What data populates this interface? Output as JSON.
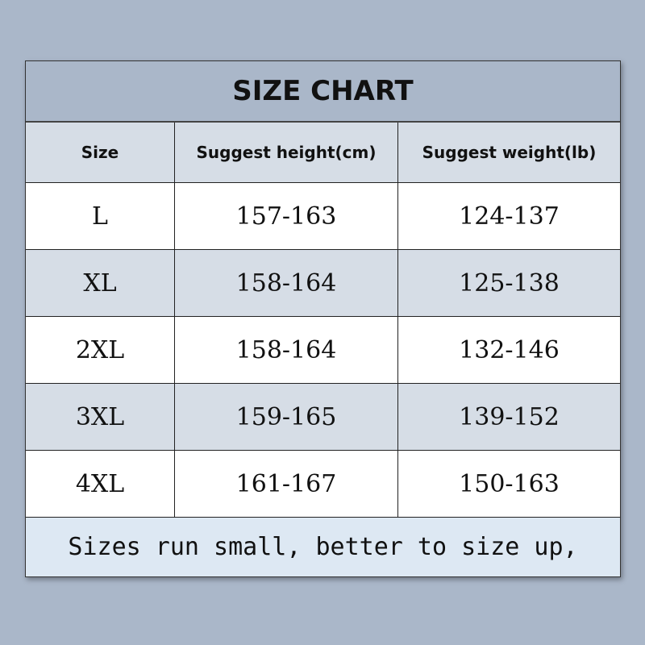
{
  "title": "SIZE CHART",
  "headers": [
    "Size",
    "Suggest height(cm)",
    "Suggest weight(lb)"
  ],
  "rows": [
    [
      "L",
      "157-163",
      "124-137"
    ],
    [
      "XL",
      "158-164",
      "125-138"
    ],
    [
      "2XL",
      "158-164",
      "132-146"
    ],
    [
      "3XL",
      "159-165",
      "139-152"
    ],
    [
      "4XL",
      "161-167",
      "150-163"
    ]
  ],
  "footer": "Sizes run small, better to size up,",
  "colors": {
    "background": "#aab7c9",
    "header_row": "#d6dde6",
    "footer": "#dde8f3"
  }
}
